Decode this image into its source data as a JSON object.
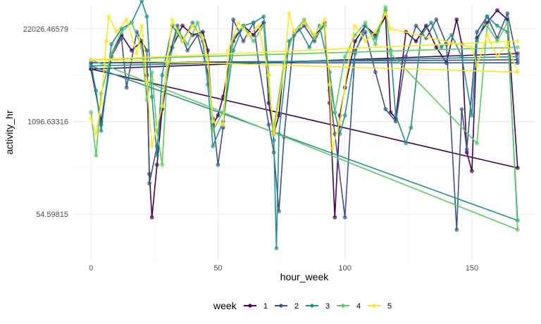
{
  "chart_data": {
    "type": "line",
    "title": "",
    "xlabel": "hour_week",
    "ylabel": "activity_hr",
    "x_axis": {
      "range": [
        -7,
        175
      ],
      "ticks": [
        0,
        50,
        100,
        150
      ]
    },
    "y_axis": {
      "scale": "log",
      "log_range": [
        2.5,
        10.75
      ],
      "ticks": [
        {
          "log": 4,
          "label": "54.59815"
        },
        {
          "log": 7,
          "label": "1096.63316"
        },
        {
          "log": 10,
          "label": "22026.46579"
        }
      ]
    },
    "grid": true,
    "legend": {
      "title": "week",
      "position": "bottom",
      "entries": [
        "1",
        "2",
        "3",
        "4",
        "5"
      ]
    },
    "series": [
      {
        "name": "1",
        "color": "#440154",
        "values": [
          [
            0,
            8.7
          ],
          [
            4,
            7.0
          ],
          [
            8,
            9.2
          ],
          [
            12,
            9.8
          ],
          [
            16,
            9.3
          ],
          [
            20,
            9.6
          ],
          [
            22,
            8.5
          ],
          [
            23,
            5.3
          ],
          [
            24,
            3.9
          ],
          [
            26,
            5.6
          ],
          [
            28,
            7.4
          ],
          [
            32,
            9.4
          ],
          [
            36,
            10.1
          ],
          [
            40,
            9.8
          ],
          [
            44,
            9.9
          ],
          [
            46,
            9.3
          ],
          [
            48,
            6.9
          ],
          [
            50,
            7.2
          ],
          [
            52,
            7.8
          ],
          [
            56,
            9.6
          ],
          [
            60,
            10.1
          ],
          [
            64,
            9.8
          ],
          [
            68,
            10.2
          ],
          [
            70,
            7.6
          ],
          [
            72,
            6.6
          ],
          [
            74,
            7.2
          ],
          [
            76,
            8.9
          ],
          [
            80,
            9.9
          ],
          [
            84,
            10.2
          ],
          [
            88,
            9.8
          ],
          [
            92,
            10.1
          ],
          [
            94,
            7.6
          ],
          [
            96,
            3.9
          ],
          [
            98,
            7.2
          ],
          [
            100,
            8.1
          ],
          [
            104,
            9.6
          ],
          [
            108,
            10.1
          ],
          [
            112,
            9.8
          ],
          [
            116,
            10.4
          ],
          [
            118,
            7.3
          ],
          [
            120,
            7.1
          ],
          [
            124,
            9.9
          ],
          [
            128,
            9.6
          ],
          [
            132,
            10.1
          ],
          [
            136,
            9.4
          ],
          [
            140,
            8.9
          ],
          [
            144,
            10.3
          ],
          [
            146,
            9.5
          ],
          [
            148,
            6.0
          ],
          [
            150,
            5.4
          ],
          [
            152,
            9.7
          ],
          [
            156,
            10.2
          ],
          [
            160,
            10.6
          ],
          [
            164,
            10.3
          ],
          [
            168,
            5.5
          ],
          [
            0,
            8.7
          ],
          [
            168,
            9.2
          ]
        ]
      },
      {
        "name": "2",
        "color": "#3b528b",
        "values": [
          [
            0,
            8.9
          ],
          [
            4,
            6.9
          ],
          [
            8,
            9.1
          ],
          [
            12,
            9.7
          ],
          [
            14,
            8.1
          ],
          [
            18,
            9.9
          ],
          [
            22,
            9.3
          ],
          [
            23,
            5.0
          ],
          [
            26,
            6.2
          ],
          [
            30,
            8.9
          ],
          [
            34,
            10.1
          ],
          [
            38,
            9.3
          ],
          [
            42,
            9.8
          ],
          [
            46,
            8.6
          ],
          [
            48,
            7.1
          ],
          [
            50,
            5.6
          ],
          [
            52,
            6.8
          ],
          [
            56,
            10.3
          ],
          [
            60,
            9.6
          ],
          [
            64,
            10.2
          ],
          [
            66,
            8.9
          ],
          [
            70,
            6.9
          ],
          [
            72,
            6.0
          ],
          [
            74,
            4.1
          ],
          [
            76,
            6.5
          ],
          [
            80,
            9.8
          ],
          [
            84,
            10.1
          ],
          [
            88,
            9.6
          ],
          [
            92,
            10.2
          ],
          [
            94,
            8.0
          ],
          [
            96,
            6.6
          ],
          [
            100,
            3.9
          ],
          [
            104,
            9.3
          ],
          [
            108,
            9.9
          ],
          [
            112,
            8.6
          ],
          [
            116,
            7.4
          ],
          [
            120,
            7.0
          ],
          [
            124,
            9.1
          ],
          [
            128,
            10.1
          ],
          [
            132,
            9.7
          ],
          [
            136,
            10.3
          ],
          [
            140,
            9.5
          ],
          [
            144,
            3.5
          ],
          [
            146,
            7.4
          ],
          [
            148,
            6.1
          ],
          [
            152,
            9.9
          ],
          [
            156,
            10.4
          ],
          [
            160,
            9.7
          ],
          [
            164,
            10.5
          ],
          [
            168,
            8.9
          ],
          [
            0,
            8.9
          ],
          [
            168,
            9.0
          ]
        ]
      },
      {
        "name": "3",
        "color": "#21908c",
        "values": [
          [
            0,
            8.8
          ],
          [
            2,
            8.0
          ],
          [
            4,
            6.7
          ],
          [
            8,
            9.5
          ],
          [
            12,
            10.0
          ],
          [
            16,
            10.2
          ],
          [
            20,
            10.9
          ],
          [
            22,
            10.4
          ],
          [
            24,
            7.8
          ],
          [
            26,
            5.9
          ],
          [
            28,
            8.5
          ],
          [
            32,
            10.1
          ],
          [
            36,
            9.6
          ],
          [
            40,
            10.2
          ],
          [
            44,
            9.6
          ],
          [
            46,
            8.2
          ],
          [
            48,
            6.2
          ],
          [
            52,
            7.0
          ],
          [
            56,
            9.3
          ],
          [
            60,
            10.1
          ],
          [
            64,
            10.2
          ],
          [
            68,
            10.4
          ],
          [
            70,
            8.5
          ],
          [
            72,
            6.4
          ],
          [
            73,
            2.9
          ],
          [
            74,
            6.6
          ],
          [
            78,
            9.6
          ],
          [
            82,
            10.0
          ],
          [
            86,
            9.4
          ],
          [
            90,
            10.1
          ],
          [
            94,
            8.6
          ],
          [
            96,
            7.3
          ],
          [
            98,
            6.6
          ],
          [
            100,
            7.2
          ],
          [
            104,
            9.2
          ],
          [
            108,
            10.1
          ],
          [
            112,
            9.7
          ],
          [
            116,
            10.6
          ],
          [
            118,
            9.3
          ],
          [
            120,
            7.2
          ],
          [
            124,
            6.3
          ],
          [
            126,
            6.8
          ],
          [
            130,
            9.8
          ],
          [
            134,
            10.2
          ],
          [
            138,
            9.4
          ],
          [
            142,
            9.8
          ],
          [
            146,
            9.1
          ],
          [
            150,
            7.2
          ],
          [
            152,
            9.6
          ],
          [
            156,
            10.4
          ],
          [
            160,
            10.1
          ],
          [
            164,
            9.9
          ],
          [
            168,
            3.8
          ],
          [
            0,
            8.8
          ],
          [
            168,
            9.1
          ]
        ]
      },
      {
        "name": "4",
        "color": "#5ec962",
        "values": [
          [
            0,
            7.3
          ],
          [
            2,
            5.9
          ],
          [
            4,
            7.9
          ],
          [
            8,
            9.2
          ],
          [
            12,
            9.9
          ],
          [
            16,
            10.2
          ],
          [
            20,
            9.4
          ],
          [
            22,
            7.7
          ],
          [
            24,
            8.6
          ],
          [
            26,
            6.7
          ],
          [
            28,
            5.6
          ],
          [
            30,
            8.6
          ],
          [
            34,
            10.0
          ],
          [
            38,
            9.5
          ],
          [
            42,
            10.2
          ],
          [
            46,
            9.1
          ],
          [
            48,
            6.7
          ],
          [
            52,
            7.3
          ],
          [
            56,
            9.7
          ],
          [
            60,
            10.1
          ],
          [
            64,
            9.6
          ],
          [
            68,
            10.1
          ],
          [
            70,
            8.0
          ],
          [
            72,
            6.8
          ],
          [
            76,
            8.9
          ],
          [
            80,
            9.9
          ],
          [
            84,
            10.3
          ],
          [
            88,
            9.7
          ],
          [
            92,
            10.1
          ],
          [
            94,
            8.2
          ],
          [
            96,
            7.3
          ],
          [
            100,
            9.1
          ],
          [
            104,
            9.8
          ],
          [
            108,
            10.2
          ],
          [
            112,
            9.5
          ],
          [
            116,
            10.7
          ],
          [
            118,
            9.2
          ],
          [
            152,
            6.3
          ],
          [
            156,
            10.1
          ],
          [
            160,
            9.6
          ],
          [
            164,
            10.2
          ],
          [
            168,
            3.5
          ],
          [
            0,
            9.0
          ],
          [
            168,
            9.4
          ]
        ]
      },
      {
        "name": "5",
        "color": "#fde725",
        "values": [
          [
            0,
            7.1
          ],
          [
            2,
            6.6
          ],
          [
            4,
            7.6
          ],
          [
            6,
            9.6
          ],
          [
            7,
            10.4
          ],
          [
            10,
            9.9
          ],
          [
            14,
            10.3
          ],
          [
            18,
            9.2
          ],
          [
            20,
            10.1
          ],
          [
            22,
            8.3
          ],
          [
            24,
            6.2
          ],
          [
            28,
            7.5
          ],
          [
            30,
            8.9
          ],
          [
            32,
            10.3
          ],
          [
            36,
            9.6
          ],
          [
            40,
            10.1
          ],
          [
            44,
            9.7
          ],
          [
            46,
            9.0
          ],
          [
            48,
            7.0
          ],
          [
            52,
            6.9
          ],
          [
            54,
            9.3
          ],
          [
            58,
            10.2
          ],
          [
            62,
            9.8
          ],
          [
            66,
            10.1
          ],
          [
            70,
            8.5
          ],
          [
            72,
            6.6
          ],
          [
            76,
            8.7
          ],
          [
            78,
            10.5
          ],
          [
            80,
            9.9
          ],
          [
            84,
            10.2
          ],
          [
            88,
            9.8
          ],
          [
            92,
            10.3
          ],
          [
            94,
            8.2
          ],
          [
            95,
            6.1
          ],
          [
            98,
            7.0
          ],
          [
            102,
            9.3
          ],
          [
            104,
            10.1
          ],
          [
            108,
            9.6
          ],
          [
            112,
            9.9
          ],
          [
            116,
            10.5
          ],
          [
            118,
            10.0
          ],
          [
            150,
            9.4
          ],
          [
            152,
            8.8
          ],
          [
            156,
            9.8
          ],
          [
            160,
            9.1
          ],
          [
            164,
            9.5
          ],
          [
            168,
            8.6
          ],
          [
            0,
            9.0
          ],
          [
            168,
            9.6
          ]
        ]
      }
    ]
  }
}
